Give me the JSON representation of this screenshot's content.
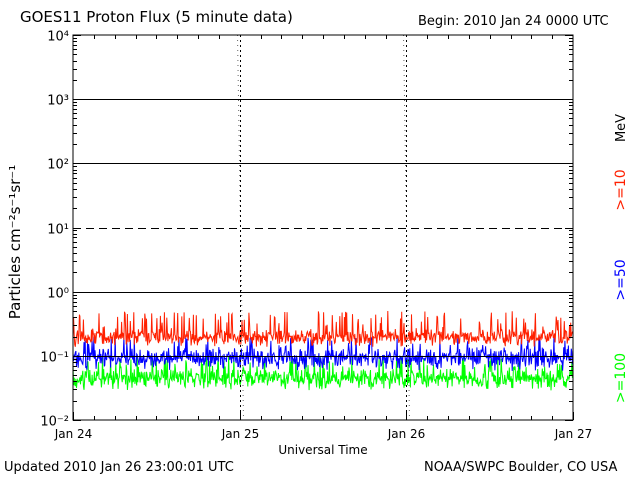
{
  "header": {
    "title": "GOES11 Proton Flux (5 minute data)",
    "begin": "Begin: 2010 Jan 24 0000 UTC"
  },
  "footer": {
    "updated": "Updated 2010 Jan 26 23:00:01 UTC",
    "credit": "NOAA/SWPC Boulder, CO USA"
  },
  "chart_data": {
    "type": "line",
    "title": "GOES11 Proton Flux (5 minute data)",
    "xlabel": "Universal Time",
    "ylabel": "Particles cm⁻²s⁻¹sr⁻¹",
    "yscale": "log",
    "ylim": [
      0.01,
      10000
    ],
    "xlim_days": [
      0,
      3
    ],
    "x_tick_labels": [
      "Jan 24",
      "Jan 25",
      "Jan 26",
      "Jan 27"
    ],
    "y_tick_labels": [
      "10⁴",
      "10³",
      "10²",
      "10¹",
      "10⁰",
      "10⁻¹",
      "10⁻²"
    ],
    "y_tick_values": [
      10000,
      1000,
      100,
      10,
      1,
      0.1,
      0.01
    ],
    "threshold_lines": [
      {
        "value": 1000,
        "style": "solid"
      },
      {
        "value": 100,
        "style": "solid"
      },
      {
        "value": 10,
        "style": "dashed"
      },
      {
        "value": 1,
        "style": "solid"
      },
      {
        "value": 0.1,
        "style": "solid"
      }
    ],
    "unit_label": "MeV",
    "series": [
      {
        "name": ">=10",
        "color": "#ff2000",
        "baseline": 0.17,
        "min": 0.13,
        "max": 0.5
      },
      {
        "name": ">=50",
        "color": "#0000ff",
        "baseline": 0.085,
        "min": 0.055,
        "max": 0.2
      },
      {
        "name": ">=100",
        "color": "#00ff00",
        "baseline": 0.04,
        "min": 0.027,
        "max": 0.1
      }
    ],
    "grid": false
  }
}
